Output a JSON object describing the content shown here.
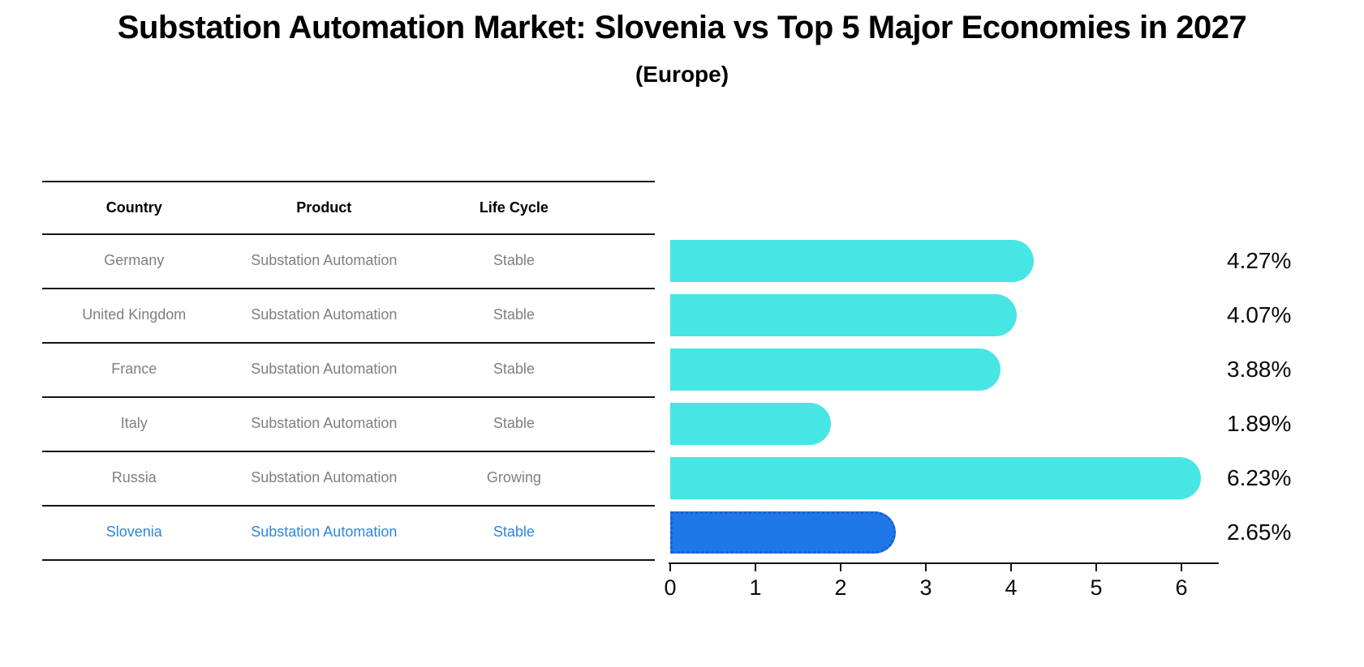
{
  "title": "Substation Automation Market: Slovenia vs Top 5 Major Economies in 2027",
  "subtitle": "(Europe)",
  "table": {
    "headers": [
      "Country",
      "Product",
      "Life Cycle"
    ],
    "rows": [
      {
        "country": "Germany",
        "product": "Substation Automation",
        "life_cycle": "Stable"
      },
      {
        "country": "United Kingdom",
        "product": "Substation Automation",
        "life_cycle": "Stable"
      },
      {
        "country": "France",
        "product": "Substation Automation",
        "life_cycle": "Stable"
      },
      {
        "country": "Italy",
        "product": "Substation Automation",
        "life_cycle": "Stable"
      },
      {
        "country": "Russia",
        "product": "Substation Automation",
        "life_cycle": "Growing"
      },
      {
        "country": "Slovenia",
        "product": "Substation Automation",
        "life_cycle": "Stable"
      }
    ],
    "highlight_row_index": 5
  },
  "chart_data": {
    "type": "bar",
    "orientation": "horizontal",
    "title": "Substation Automation Market: Slovenia vs Top 5 Major Economies in 2027 (Europe)",
    "categories": [
      "Germany",
      "United Kingdom",
      "France",
      "Italy",
      "Russia",
      "Slovenia"
    ],
    "values": [
      4.27,
      4.07,
      3.88,
      1.89,
      6.23,
      2.65
    ],
    "value_labels": [
      "4.27%",
      "4.07%",
      "3.88%",
      "1.89%",
      "6.23%",
      "2.65%"
    ],
    "highlight_index": 5,
    "x_ticks": [
      "0",
      "1",
      "2",
      "3",
      "4",
      "5",
      "6"
    ],
    "xlim": [
      0,
      6.45
    ],
    "grid": false,
    "legend": false,
    "xlabel": "",
    "ylabel": ""
  },
  "colors": {
    "bar_normal": "#48e5e5",
    "bar_highlight": "#1f78e8",
    "bar_highlight_border": "#1a5ed2",
    "highlight_text": "#2e86de",
    "row_text": "#7f7f7f",
    "header_text": "#000000",
    "axis_line": "#141414",
    "background": "#ffffff"
  }
}
